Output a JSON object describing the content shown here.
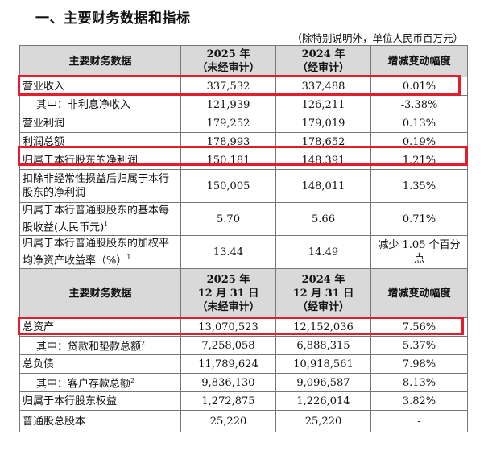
{
  "section_title": "一、主要财务数据和指标",
  "unit_note": "（除特别说明外，单位人民币百万元）",
  "header1": {
    "label": "主要财务数据",
    "col2025_line1": "2025 年",
    "col2025_line2": "（未经审计）",
    "col2024_line1": "2024 年",
    "col2024_line2": "（经审计）",
    "change": "增减变动幅度"
  },
  "rows1": [
    {
      "label": "营业收入",
      "v2025": "337,532",
      "v2024": "337,488",
      "change": "0.01%"
    },
    {
      "label": "其中：非利息净收入",
      "v2025": "121,939",
      "v2024": "126,211",
      "change": "-3.38%"
    },
    {
      "label": "营业利润",
      "v2025": "179,252",
      "v2024": "179,019",
      "change": "0.13%"
    },
    {
      "label": "利润总额",
      "v2025": "178,993",
      "v2024": "178,652",
      "change": "0.19%"
    },
    {
      "label": "归属于本行股东的净利润",
      "v2025": "150,181",
      "v2024": "148,391",
      "change": "1.21%"
    },
    {
      "label": "扣除非经常性损益后归属于本行股东的净利润",
      "v2025": "150,005",
      "v2024": "148,011",
      "change": "1.35%"
    },
    {
      "label": "归属于本行普通股股东的基本每股收益(人民币元)",
      "sup": "1",
      "v2025": "5.70",
      "v2024": "5.66",
      "change": "0.71%"
    },
    {
      "label": "归属于本行普通股股东的加权平均净资产收益率（%）",
      "sup": "1",
      "v2025": "13.44",
      "v2024": "14.49",
      "change": "减少 1.05 个百分点"
    }
  ],
  "header2": {
    "label": "主要财务数据",
    "col2025_line1": "2025 年",
    "col2025_line2": "12 月 31 日",
    "col2025_line3": "（未经审计）",
    "col2024_line1": "2024 年",
    "col2024_line2": "12 月 31 日",
    "col2024_line3": "（经审计）",
    "change": "增减变动幅度"
  },
  "rows2": [
    {
      "label": "总资产",
      "v2025": "13,070,523",
      "v2024": "12,152,036",
      "change": "7.56%"
    },
    {
      "label": "其中：贷款和垫款总额",
      "sup": "2",
      "v2025": "7,258,058",
      "v2024": "6,888,315",
      "change": "5.37%"
    },
    {
      "label": "总负债",
      "v2025": "11,789,624",
      "v2024": "10,918,561",
      "change": "7.98%"
    },
    {
      "label": "其中：客户存款总额",
      "sup": "2",
      "v2025": "9,836,130",
      "v2024": "9,096,587",
      "change": "8.13%"
    },
    {
      "label": "归属于本行股东权益",
      "v2025": "1,272,875",
      "v2024": "1,226,014",
      "change": "3.82%"
    },
    {
      "label": "普通股总股本",
      "v2025": "25,220",
      "v2024": "25,220",
      "change": "-"
    }
  ],
  "colors": {
    "highlight": "#e41c2c",
    "header_bg": "#d9d9d9"
  }
}
